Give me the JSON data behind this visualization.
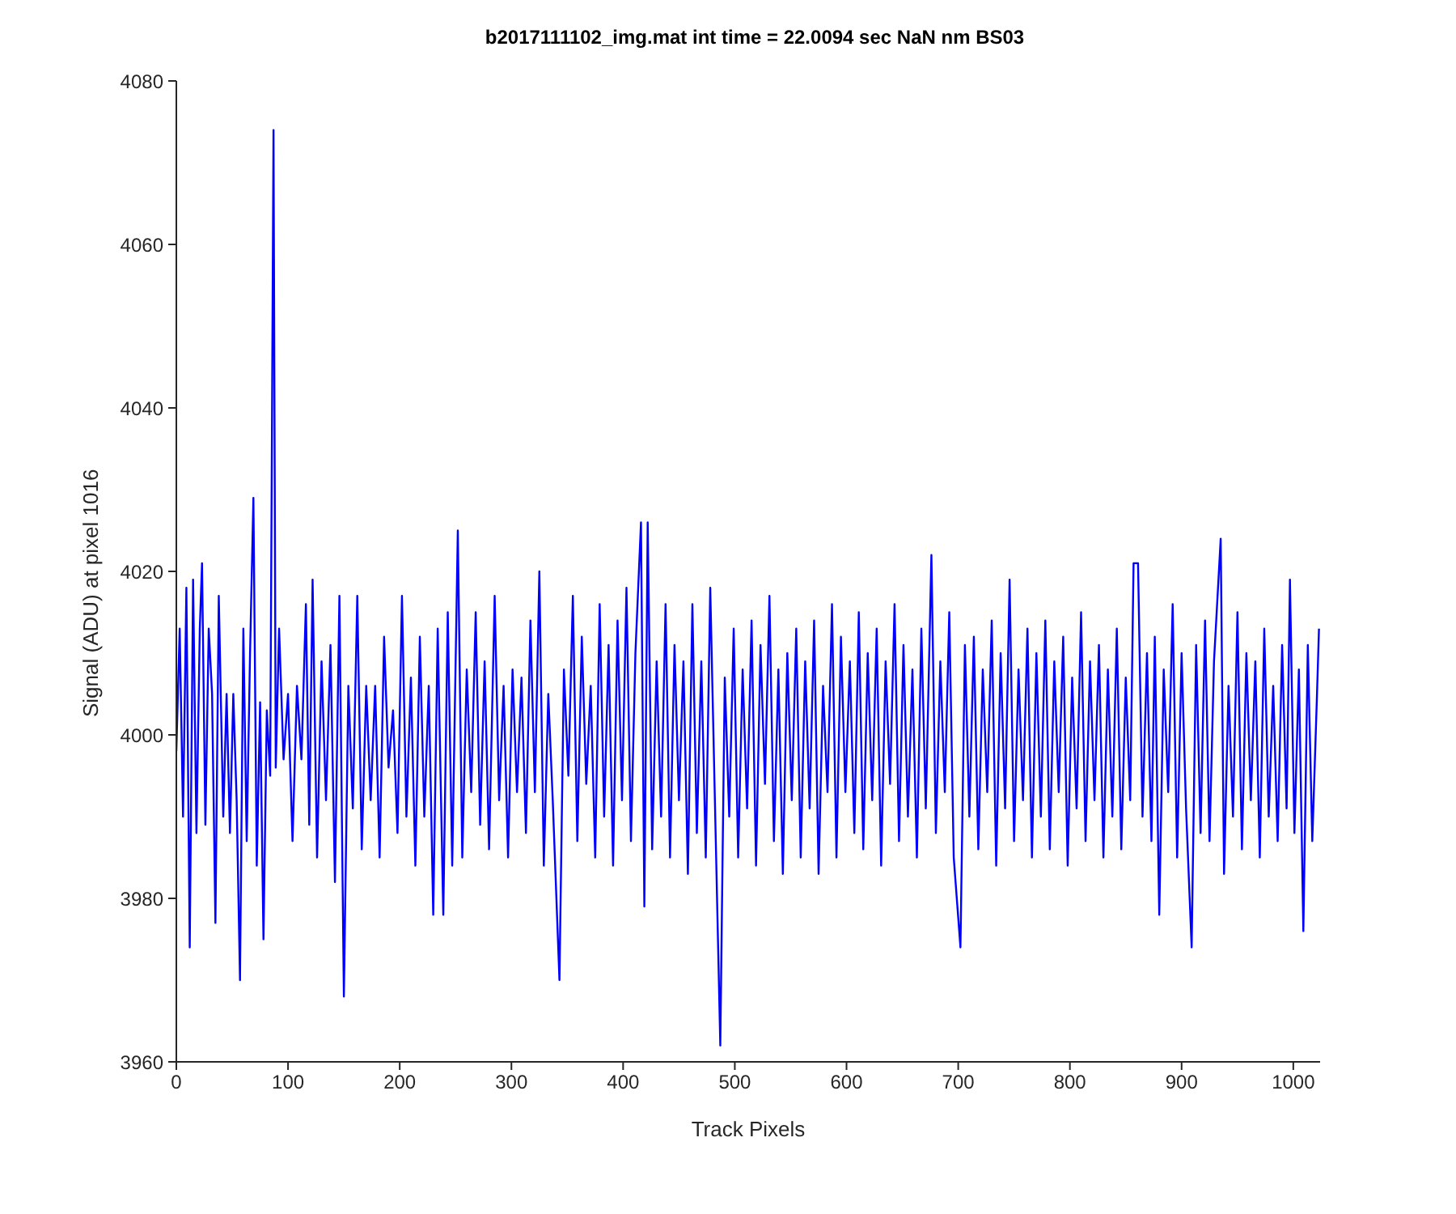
{
  "chart_data": {
    "type": "line",
    "title": "b2017111102_img.mat int time = 22.0094 sec  NaN nm BS03",
    "xlabel": "Track Pixels",
    "ylabel": "Signal (ADU) at pixel 1016",
    "x": [
      0,
      3,
      6,
      9,
      12,
      15,
      18,
      21,
      23,
      26,
      29,
      32,
      35,
      38,
      42,
      45,
      48,
      51,
      54,
      57,
      60,
      63,
      66,
      69,
      72,
      75,
      78,
      81,
      84,
      87,
      89,
      92,
      96,
      100,
      104,
      108,
      112,
      116,
      119,
      122,
      126,
      130,
      134,
      138,
      142,
      146,
      150,
      154,
      158,
      162,
      166,
      170,
      174,
      178,
      182,
      186,
      190,
      194,
      198,
      202,
      206,
      210,
      214,
      218,
      222,
      226,
      230,
      234,
      239,
      243,
      247,
      252,
      256,
      260,
      264,
      268,
      272,
      276,
      280,
      285,
      289,
      293,
      297,
      301,
      305,
      309,
      313,
      317,
      321,
      325,
      329,
      333,
      337,
      343,
      347,
      351,
      355,
      359,
      363,
      367,
      371,
      375,
      379,
      383,
      387,
      391,
      395,
      399,
      403,
      407,
      411,
      416,
      419,
      422,
      426,
      430,
      434,
      438,
      442,
      446,
      450,
      454,
      458,
      462,
      466,
      470,
      474,
      478,
      482,
      487,
      491,
      495,
      499,
      503,
      507,
      511,
      515,
      519,
      523,
      527,
      531,
      535,
      539,
      543,
      547,
      551,
      555,
      559,
      563,
      567,
      571,
      575,
      579,
      583,
      587,
      591,
      595,
      599,
      603,
      607,
      611,
      615,
      619,
      623,
      627,
      631,
      635,
      639,
      643,
      647,
      651,
      655,
      659,
      663,
      667,
      671,
      676,
      680,
      684,
      688,
      692,
      696,
      702,
      706,
      710,
      714,
      718,
      722,
      726,
      730,
      734,
      738,
      742,
      746,
      750,
      754,
      758,
      762,
      766,
      770,
      774,
      778,
      782,
      786,
      790,
      794,
      798,
      802,
      806,
      810,
      814,
      818,
      822,
      826,
      830,
      834,
      838,
      842,
      846,
      850,
      854,
      857,
      861,
      865,
      869,
      873,
      876,
      880,
      884,
      888,
      892,
      896,
      900,
      904,
      909,
      913,
      917,
      921,
      925,
      929,
      935,
      938,
      942,
      946,
      950,
      954,
      958,
      962,
      966,
      970,
      974,
      978,
      982,
      986,
      990,
      994,
      997,
      1001,
      1005,
      1009,
      1013,
      1017,
      1021,
      1023
    ],
    "series": [
      {
        "color": "#0000ff",
        "values": [
          3998,
          4013,
          3990,
          4018,
          3974,
          4019,
          3988,
          4013,
          4021,
          3989,
          4013,
          4005,
          3977,
          4017,
          3990,
          4005,
          3988,
          4005,
          3992,
          3970,
          4013,
          3987,
          4010,
          4029,
          3984,
          4004,
          3975,
          4003,
          3995,
          4074,
          3996,
          4013,
          3997,
          4005,
          3987,
          4006,
          3997,
          4016,
          3989,
          4019,
          3985,
          4009,
          3992,
          4011,
          3982,
          4017,
          3968,
          4006,
          3991,
          4017,
          3986,
          4006,
          3992,
          4006,
          3985,
          4012,
          3996,
          4003,
          3988,
          4017,
          3990,
          4007,
          3984,
          4012,
          3990,
          4006,
          3978,
          4013,
          3978,
          4015,
          3984,
          4025,
          3985,
          4008,
          3993,
          4015,
          3989,
          4009,
          3986,
          4017,
          3992,
          4006,
          3985,
          4008,
          3993,
          4007,
          3988,
          4014,
          3993,
          4020,
          3984,
          4005,
          3992,
          3970,
          4008,
          3995,
          4017,
          3987,
          4012,
          3994,
          4006,
          3985,
          4016,
          3990,
          4011,
          3984,
          4014,
          3992,
          4018,
          3987,
          4010,
          4026,
          3979,
          4026,
          3986,
          4009,
          3990,
          4016,
          3985,
          4011,
          3992,
          4009,
          3983,
          4016,
          3988,
          4009,
          3985,
          4018,
          3993,
          3962,
          4007,
          3990,
          4013,
          3985,
          4008,
          3991,
          4014,
          3984,
          4011,
          3994,
          4017,
          3987,
          4008,
          3983,
          4010,
          3992,
          4013,
          3985,
          4009,
          3991,
          4014,
          3983,
          4006,
          3993,
          4016,
          3985,
          4012,
          3993,
          4009,
          3988,
          4015,
          3986,
          4010,
          3992,
          4013,
          3984,
          4009,
          3994,
          4016,
          3987,
          4011,
          3990,
          4008,
          3985,
          4013,
          3991,
          4022,
          3988,
          4009,
          3993,
          4015,
          3985,
          3974,
          4011,
          3990,
          4012,
          3986,
          4008,
          3993,
          4014,
          3984,
          4010,
          3991,
          4019,
          3987,
          4008,
          3992,
          4013,
          3985,
          4010,
          3990,
          4014,
          3986,
          4009,
          3993,
          4012,
          3984,
          4007,
          3991,
          4015,
          3987,
          4009,
          3992,
          4011,
          3985,
          4008,
          3990,
          4013,
          3986,
          4007,
          3992,
          4021,
          4021,
          3990,
          4010,
          3987,
          4012,
          3978,
          4008,
          3993,
          4016,
          3985,
          4010,
          3991,
          3974,
          4011,
          3988,
          4014,
          3987,
          4009,
          4024,
          3983,
          4006,
          3990,
          4015,
          3986,
          4010,
          3992,
          4009,
          3985,
          4013,
          3990,
          4006,
          3987,
          4011,
          3991,
          4019,
          3988,
          4008,
          3976,
          4011,
          3987,
          4004,
          4013
        ]
      }
    ],
    "xlim": [
      0,
      1024
    ],
    "xticks": [
      0,
      100,
      200,
      300,
      400,
      500,
      600,
      700,
      800,
      900,
      1000
    ],
    "ylim": [
      3960,
      4080
    ],
    "yticks": [
      3960,
      3980,
      4000,
      4020,
      4040,
      4060,
      4080
    ],
    "grid": false,
    "legend": false,
    "marker": "none",
    "line_style": "solid"
  }
}
